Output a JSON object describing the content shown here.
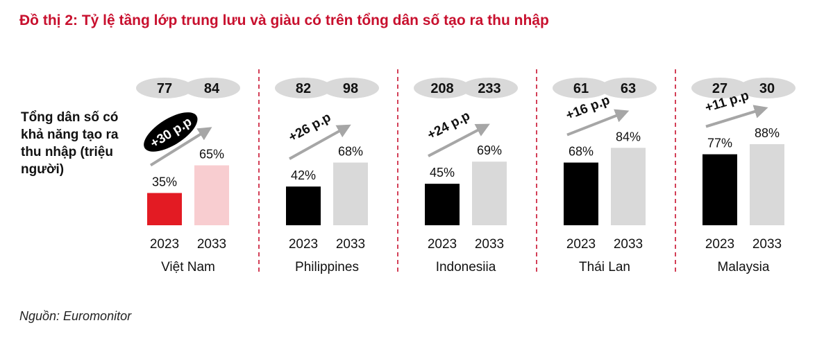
{
  "title": "Đồ thị 2: Tỷ lệ tầng lớp trung lưu và giàu có trên tổng dân số tạo ra thu nhập",
  "ylabel": "Tổng dân số có khả năng tạo ra thu nhập (triệu người)",
  "source": "Nguồn: Euromonitor",
  "colors": {
    "vn_2023": "#e31b23",
    "vn_2033": "#f8cdd0",
    "other_2023": "#000000",
    "other_2033": "#d9d9d9",
    "pill": "#d9d9d9",
    "arrow": "#a6a6a6",
    "divider": "#c8102e"
  },
  "chart_data": {
    "type": "bar",
    "title": "Đồ thị 2: Tỷ lệ tầng lớp trung lưu và giàu có trên tổng dân số tạo ra thu nhập",
    "ylabel": "Tổng dân số có khả năng tạo ra thu nhập (triệu người)",
    "unit": "%",
    "ylim": [
      0,
      100
    ],
    "grid": false,
    "years": [
      "2023",
      "2033"
    ],
    "groups": [
      {
        "country": "Việt Nam",
        "population": [
          "77",
          "84"
        ],
        "values": [
          35,
          65
        ],
        "labels": [
          "35%",
          "65%"
        ],
        "change": "+30 p.p",
        "highlight": true
      },
      {
        "country": "Philippines",
        "population": [
          "82",
          "98"
        ],
        "values": [
          42,
          68
        ],
        "labels": [
          "42%",
          "68%"
        ],
        "change": "+26 p.p",
        "highlight": false
      },
      {
        "country": "Indonesiia",
        "population": [
          "208",
          "233"
        ],
        "values": [
          45,
          69
        ],
        "labels": [
          "45%",
          "69%"
        ],
        "change": "+24 p.p",
        "highlight": false
      },
      {
        "country": "Thái Lan",
        "population": [
          "61",
          "63"
        ],
        "values": [
          68,
          84
        ],
        "labels": [
          "68%",
          "84%"
        ],
        "change": "+16 p.p",
        "highlight": false
      },
      {
        "country": "Malaysia",
        "population": [
          "27",
          "30"
        ],
        "values": [
          77,
          88
        ],
        "labels": [
          "77%",
          "88%"
        ],
        "change": "+11 p.p",
        "highlight": false
      }
    ]
  }
}
